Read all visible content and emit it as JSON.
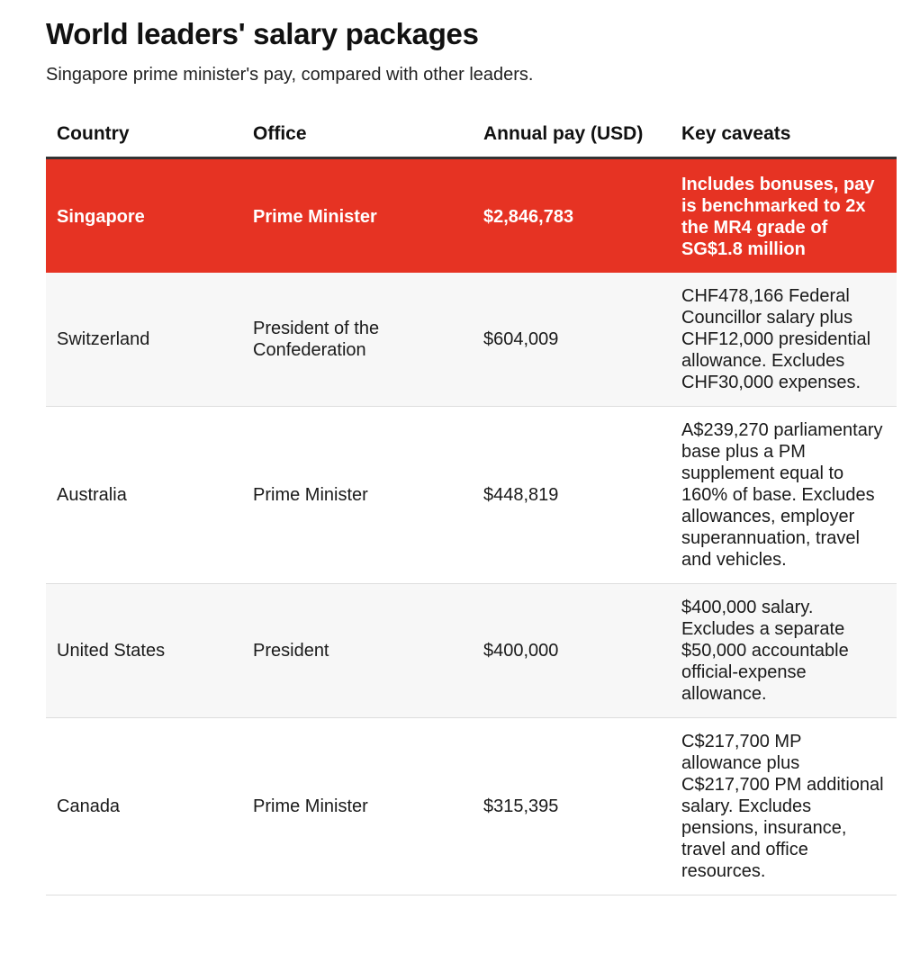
{
  "title": "World leaders' salary packages",
  "subtitle": "Singapore prime minister's pay, compared with other leaders.",
  "colors": {
    "highlight": "#e63323",
    "shade": "#f7f7f7"
  },
  "chart_data": {
    "type": "table",
    "title": "World leaders' salary packages",
    "subtitle": "Singapore prime minister's pay, compared with other leaders.",
    "columns": [
      "Country",
      "Office",
      "Annual pay (USD)",
      "Key caveats"
    ],
    "rows": [
      {
        "country": "Singapore",
        "office": "Prime Minister",
        "annual_pay": "$2,846,783",
        "caveats": "Includes bonuses, pay is benchmarked to 2x the MR4 grade of SG$1.8 million",
        "highlight": true
      },
      {
        "country": "Switzerland",
        "office": "President of the Confederation",
        "annual_pay": "$604,009",
        "caveats": "CHF478,166 Federal Councillor salary plus CHF12,000 presidential allowance. Excludes CHF30,000 expenses.",
        "highlight": false
      },
      {
        "country": "Australia",
        "office": "Prime Minister",
        "annual_pay": "$448,819",
        "caveats": "A$239,270 parliamentary base plus a PM supplement equal to 160% of base. Excludes allowances, employer superannuation, travel and vehicles.",
        "highlight": false
      },
      {
        "country": "United States",
        "office": "President",
        "annual_pay": "$400,000",
        "caveats": "$400,000 salary. Excludes a separate $50,000 accountable official-expense allowance.",
        "highlight": false
      },
      {
        "country": "Canada",
        "office": "Prime Minister",
        "annual_pay": "$315,395",
        "caveats": "C$217,700 MP allowance plus C$217,700 PM additional salary. Excludes pensions, insurance, travel and office resources.",
        "highlight": false
      }
    ]
  }
}
